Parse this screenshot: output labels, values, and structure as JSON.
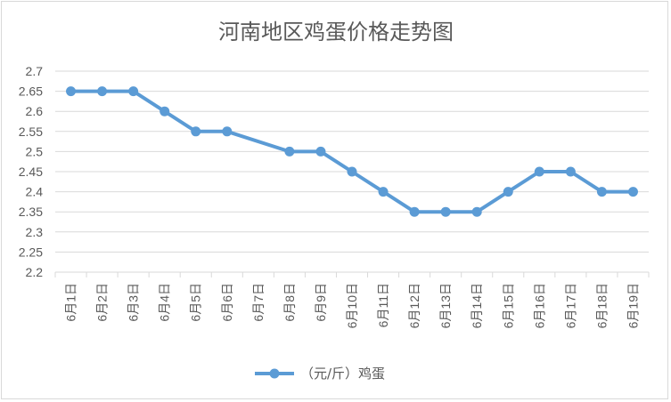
{
  "chart_data": {
    "type": "line",
    "title": "河南地区鸡蛋价格走势图",
    "categories": [
      "6月1日",
      "6月2日",
      "6月3日",
      "6月4日",
      "6月5日",
      "6月6日",
      "6月7日",
      "6月8日",
      "6月9日",
      "6月10日",
      "6月11日",
      "6月12日",
      "6月13日",
      "6月14日",
      "6月15日",
      "6月16日",
      "6月17日",
      "6月18日",
      "6月19日"
    ],
    "series": [
      {
        "name": "（元/斤）鸡蛋",
        "color": "#5b9bd5",
        "values": [
          2.65,
          2.65,
          2.65,
          2.6,
          2.55,
          2.55,
          null,
          2.5,
          2.5,
          2.45,
          2.4,
          2.35,
          2.35,
          2.35,
          2.4,
          2.45,
          2.45,
          2.4,
          2.4
        ]
      }
    ],
    "ylim": [
      2.2,
      2.7
    ],
    "yticks": [
      "2.2",
      "2.25",
      "2.3",
      "2.35",
      "2.4",
      "2.45",
      "2.5",
      "2.55",
      "2.6",
      "2.65",
      "2.7"
    ],
    "xlabel": "",
    "ylabel": "",
    "grid": true,
    "legend": "bottom"
  }
}
